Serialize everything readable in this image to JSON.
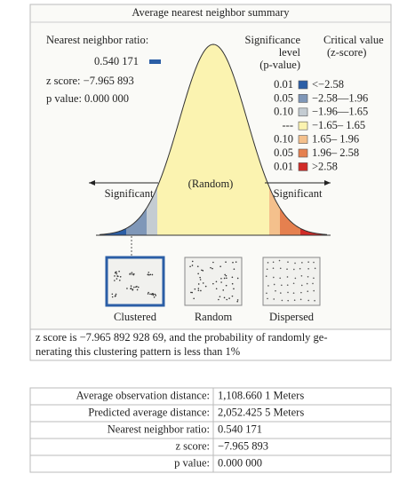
{
  "title": "Average nearest neighbor summary",
  "summary": {
    "ratio_label": "Nearest neighbor ratio:",
    "ratio_value": "0.540 171",
    "z_score": "z score: −7.965 893",
    "p_value": "p value: 0.000 000"
  },
  "legend": {
    "significance_header": [
      "Significance",
      "level",
      "(p-value)"
    ],
    "critical_header": [
      "Critical value",
      "(z-score)"
    ],
    "rows": [
      {
        "p": "0.01",
        "z": "<−2.58",
        "color": "#2b5ea6"
      },
      {
        "p": "0.05",
        "z": "−2.58—1.96",
        "color": "#7f97b8"
      },
      {
        "p": "0.10",
        "z": "−1.96—1.65",
        "color": "#c4ccd2"
      },
      {
        "p": "---",
        "z": "−1.65– 1.65",
        "color": "#fbf3b0"
      },
      {
        "p": "0.10",
        "z": "1.65– 1.96",
        "color": "#f4c08c"
      },
      {
        "p": "0.05",
        "z": "1.96– 2.58",
        "color": "#e5804f"
      },
      {
        "p": "0.01",
        "z": ">2.58",
        "color": "#d12b28"
      }
    ]
  },
  "diagram": {
    "significant_left": "Significant",
    "random": "(Random)",
    "significant_right": "Significant",
    "patterns": [
      "Clustered",
      "Random",
      "Dispersed"
    ]
  },
  "note": [
    "z score is −7.965 892 928 69, and the probability of randomly ge-",
    "nerating this clustering pattern is less than 1%"
  ],
  "table": {
    "rows": [
      [
        "Average observation distance:",
        "1,108.660 1 Meters"
      ],
      [
        "Predicted average distance:",
        "2,052.425 5 Meters"
      ],
      [
        "Nearest neighbor ratio:",
        "0.540 171"
      ],
      [
        "z score:",
        "−7.965 893"
      ],
      [
        "p value:",
        "0.000 000"
      ]
    ]
  }
}
